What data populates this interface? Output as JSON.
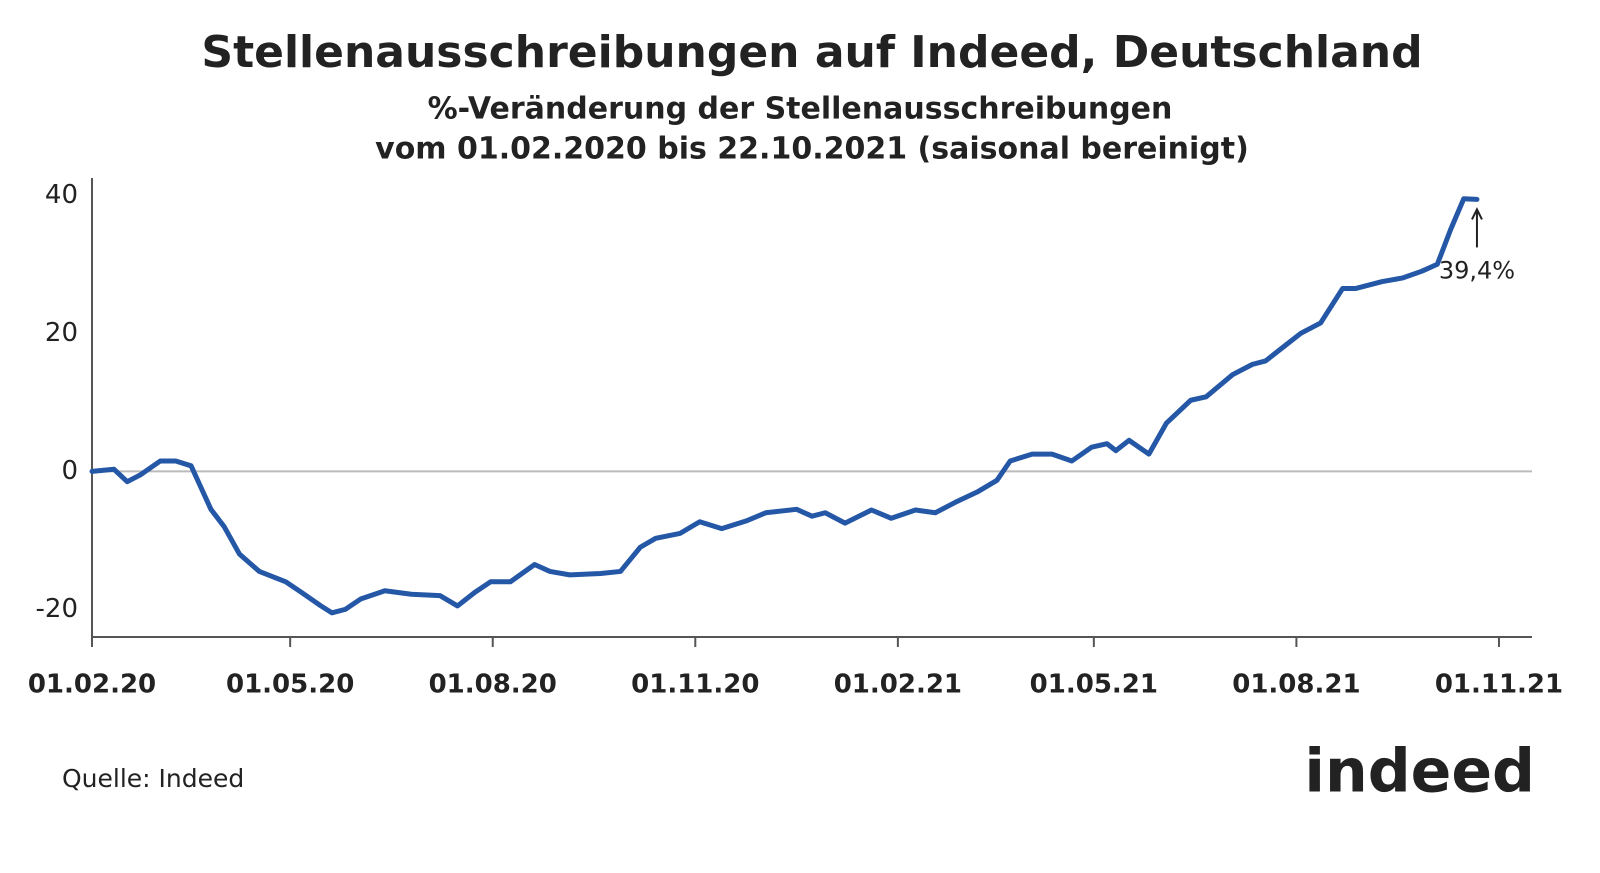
{
  "chart_data": {
    "type": "line",
    "title": "Stellenausschreibungen auf Indeed, Deutschland",
    "subtitle": [
      "%-Veränderung der Stellenausschreibungen",
      "vom 01.02.2020 bis 22.10.2021 (saisonal bereinigt)"
    ],
    "source": "Quelle: Indeed",
    "logo": "indeed",
    "annotation": {
      "text": "39,4%",
      "value": 39.4
    },
    "x": [
      "2020-02-01",
      "2020-02-11",
      "2020-02-17",
      "2020-02-23",
      "2020-03-03",
      "2020-03-10",
      "2020-03-17",
      "2020-03-21",
      "2020-03-26",
      "2020-04-01",
      "2020-04-08",
      "2020-04-17",
      "2020-04-29",
      "2020-05-06",
      "2020-05-15",
      "2020-05-20",
      "2020-05-26",
      "2020-06-02",
      "2020-06-13",
      "2020-06-25",
      "2020-07-08",
      "2020-07-16",
      "2020-07-24",
      "2020-07-31",
      "2020-08-09",
      "2020-08-20",
      "2020-08-27",
      "2020-09-05",
      "2020-09-19",
      "2020-09-28",
      "2020-10-07",
      "2020-10-14",
      "2020-10-25",
      "2020-11-03",
      "2020-11-13",
      "2020-11-24",
      "2020-12-03",
      "2020-12-17",
      "2020-12-24",
      "2020-12-30",
      "2021-01-08",
      "2021-01-20",
      "2021-01-29",
      "2021-02-09",
      "2021-02-18",
      "2021-02-27",
      "2021-03-09",
      "2021-03-18",
      "2021-03-24",
      "2021-04-03",
      "2021-04-12",
      "2021-04-21",
      "2021-04-30",
      "2021-05-07",
      "2021-05-11",
      "2021-05-17",
      "2021-05-26",
      "2021-06-03",
      "2021-06-14",
      "2021-06-21",
      "2021-07-03",
      "2021-07-12",
      "2021-07-18",
      "2021-07-28",
      "2021-08-03",
      "2021-08-12",
      "2021-08-22",
      "2021-08-28",
      "2021-09-09",
      "2021-09-18",
      "2021-09-27",
      "2021-10-04",
      "2021-10-10",
      "2021-10-16",
      "2021-10-22"
    ],
    "series": [
      {
        "name": "Stellenausschreibungen",
        "color": "#2557a7",
        "values": [
          0,
          0.3,
          -1.5,
          -0.5,
          1.5,
          1.5,
          0.8,
          -2,
          -5.5,
          -8,
          -12,
          -14.5,
          -16,
          -17.5,
          -19.5,
          -20.5,
          -20,
          -18.5,
          -17.3,
          -17.8,
          -18,
          -19.5,
          -17.5,
          -16,
          -16,
          -13.5,
          -14.5,
          -15,
          -14.8,
          -14.5,
          -11,
          -9.7,
          -9,
          -7.3,
          -8.3,
          -7.2,
          -6,
          -5.5,
          -6.5,
          -6,
          -7.5,
          -5.6,
          -6.8,
          -5.6,
          -6,
          -4.5,
          -3,
          -1.3,
          1.5,
          2.5,
          2.5,
          1.5,
          3.5,
          4,
          3,
          4.5,
          2.5,
          7,
          10.3,
          10.8,
          14,
          15.5,
          16,
          18.5,
          20,
          21.5,
          26.5,
          26.5,
          27.5,
          28,
          29,
          30,
          35,
          39.5,
          39.4
        ]
      }
    ],
    "xlim": [
      "2020-02-01",
      "2021-11-16"
    ],
    "xticks": [
      {
        "value": "2020-02-01",
        "label": "01.02.20"
      },
      {
        "value": "2020-05-01",
        "label": "01.05.20"
      },
      {
        "value": "2020-08-01",
        "label": "01.08.20"
      },
      {
        "value": "2020-11-01",
        "label": "01.11.20"
      },
      {
        "value": "2021-02-01",
        "label": "01.02.21"
      },
      {
        "value": "2021-05-01",
        "label": "01.05.21"
      },
      {
        "value": "2021-08-01",
        "label": "01.08.21"
      },
      {
        "value": "2021-11-01",
        "label": "01.11.21"
      }
    ],
    "ylim": [
      -24,
      42.5
    ],
    "yticks": [
      -20,
      0,
      20,
      40
    ],
    "grid": false,
    "zero_line": true
  }
}
